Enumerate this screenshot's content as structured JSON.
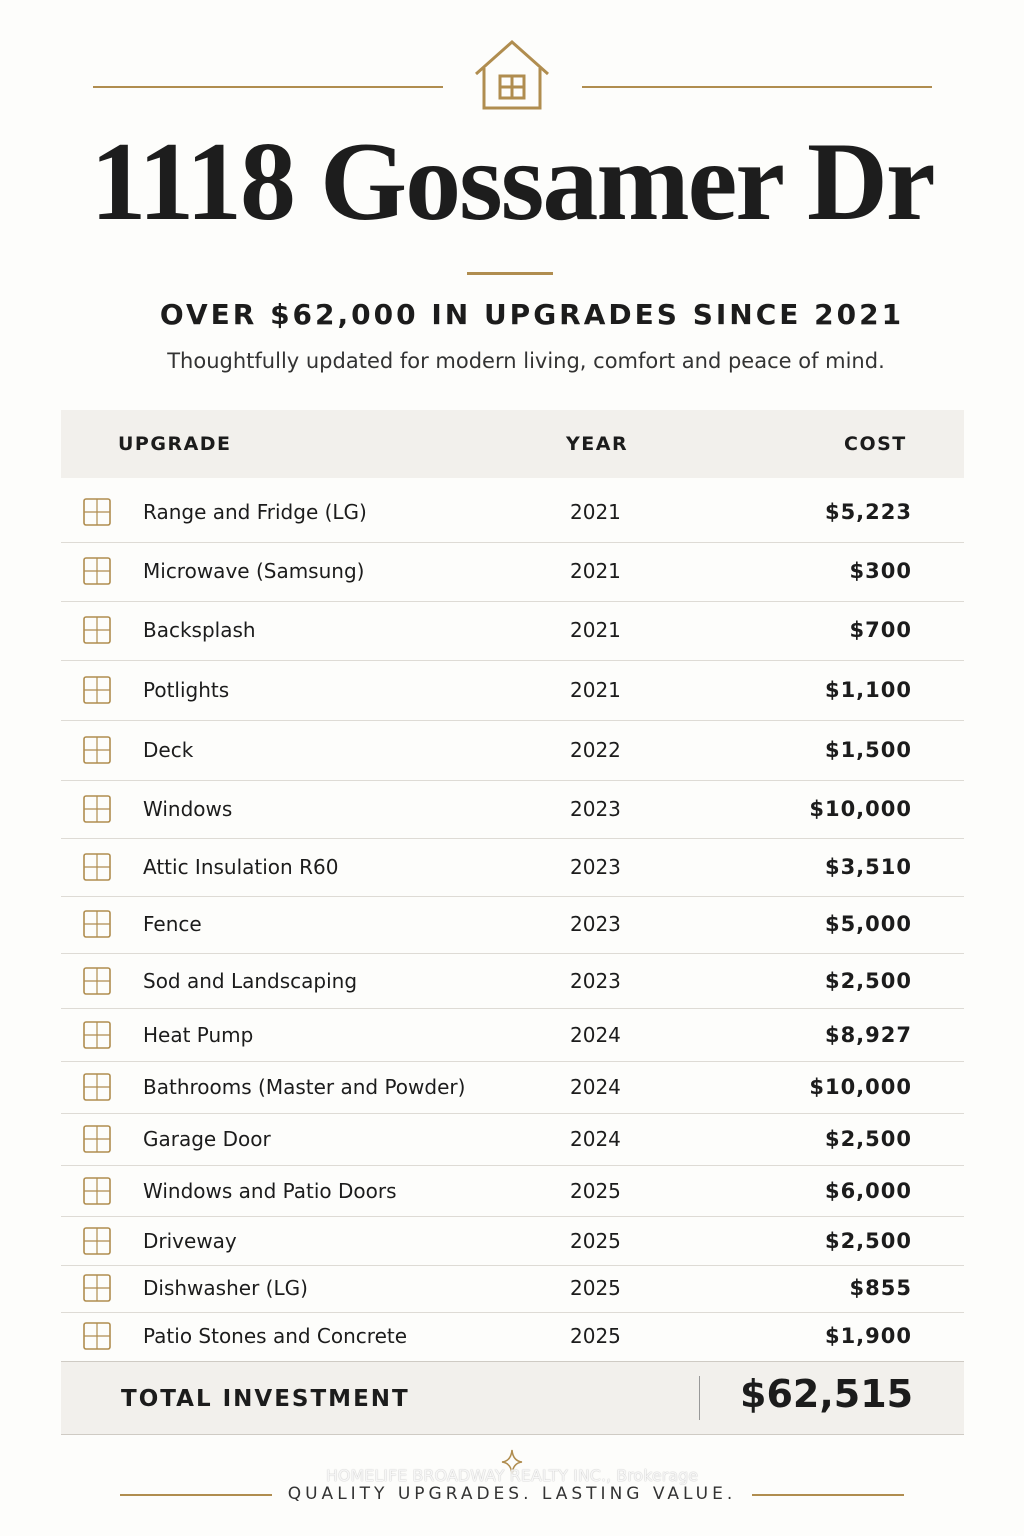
{
  "header": {
    "title": "1118 Gossamer Dr",
    "subtitle": "OVER $62,000 IN UPGRADES SINCE 2021",
    "tagline": "Thoughtfully updated for modern living, comfort and peace of mind."
  },
  "table": {
    "columns": [
      "UPGRADE",
      "YEAR",
      "COST"
    ],
    "rows": [
      [
        "Range and Fridge (LG)",
        "2021",
        "$5,223"
      ],
      [
        "Microwave (Samsung)",
        "2021",
        "$300"
      ],
      [
        "Backsplash",
        "2021",
        "$700"
      ],
      [
        "Potlights",
        "2021",
        "$1,100"
      ],
      [
        "Deck",
        "2022",
        "$1,500"
      ],
      [
        "Windows",
        "2023",
        "$10,000"
      ],
      [
        "Attic Insulation R60",
        "2023",
        "$3,510"
      ],
      [
        "Fence",
        "2023",
        "$5,000"
      ],
      [
        "Sod and Landscaping",
        "2023",
        "$2,500"
      ],
      [
        "Heat Pump",
        "2024",
        "$8,927"
      ],
      [
        "Bathrooms (Master and Powder)",
        "2024",
        "$10,000"
      ],
      [
        "Garage Door",
        "2024",
        "$2,500"
      ],
      [
        "Windows and Patio Doors",
        "2025",
        "$6,000"
      ],
      [
        "Driveway",
        "2025",
        "$2,500"
      ],
      [
        "Dishwasher (LG)",
        "2025",
        "$855"
      ],
      [
        "Patio Stones and Concrete",
        "2025",
        "$1,900"
      ]
    ],
    "total": {
      "label": "TOTAL INVESTMENT",
      "value": "$62,515"
    }
  },
  "watermark": "HOMELIFE BROADWAY REALTY INC., Brokerage",
  "footer": "QUALITY UPGRADES. LASTING VALUE."
}
